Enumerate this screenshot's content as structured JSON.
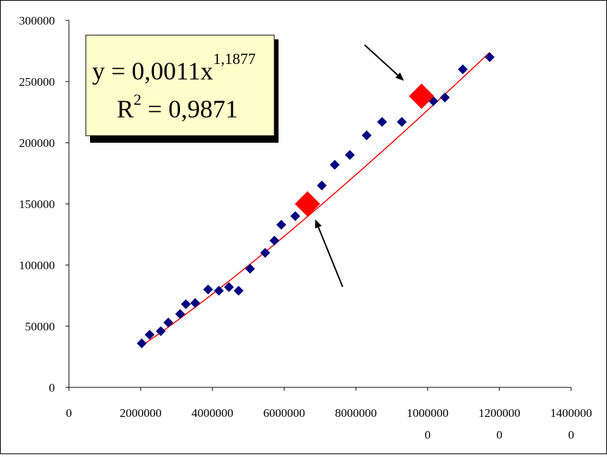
{
  "chart_data": {
    "type": "scatter",
    "xlim": [
      0,
      14000000
    ],
    "ylim": [
      0,
      300000
    ],
    "x_ticks": [
      {
        "value": 0,
        "lines": [
          "0"
        ]
      },
      {
        "value": 2000000,
        "lines": [
          "2000000"
        ]
      },
      {
        "value": 4000000,
        "lines": [
          "4000000"
        ]
      },
      {
        "value": 6000000,
        "lines": [
          "6000000"
        ]
      },
      {
        "value": 8000000,
        "lines": [
          "8000000"
        ]
      },
      {
        "value": 10000000,
        "lines": [
          "1000000",
          "0"
        ]
      },
      {
        "value": 12000000,
        "lines": [
          "1200000",
          "0"
        ]
      },
      {
        "value": 14000000,
        "lines": [
          "1400000",
          "0"
        ]
      }
    ],
    "y_ticks": [
      {
        "value": 0,
        "label": "0"
      },
      {
        "value": 50000,
        "label": "50000"
      },
      {
        "value": 100000,
        "label": "100000"
      },
      {
        "value": 150000,
        "label": "150000"
      },
      {
        "value": 200000,
        "label": "200000"
      },
      {
        "value": 250000,
        "label": "250000"
      },
      {
        "value": 300000,
        "label": "300000"
      }
    ],
    "grid": false,
    "legend": "none",
    "series": [
      {
        "marker": "diamond",
        "color": "#000080",
        "points": [
          [
            2030000,
            36000
          ],
          [
            2250000,
            43000
          ],
          [
            2560000,
            46000
          ],
          [
            2770000,
            53000
          ],
          [
            3100000,
            60000
          ],
          [
            3260000,
            68000
          ],
          [
            3520000,
            69000
          ],
          [
            3880000,
            80000
          ],
          [
            4180000,
            79000
          ],
          [
            4460000,
            82000
          ],
          [
            4730000,
            79000
          ],
          [
            5050000,
            97000
          ],
          [
            5470000,
            110000
          ],
          [
            5730000,
            120000
          ],
          [
            5920000,
            133000
          ],
          [
            6310000,
            140000
          ],
          [
            7050000,
            165000
          ],
          [
            7410000,
            182000
          ],
          [
            7830000,
            190000
          ],
          [
            8300000,
            206000
          ],
          [
            8730000,
            217000
          ],
          [
            9280000,
            217000
          ],
          [
            10160000,
            234000
          ],
          [
            10480000,
            237000
          ],
          [
            10980000,
            260000
          ],
          [
            11730000,
            270000
          ]
        ]
      }
    ],
    "trendline": {
      "kind": "power",
      "a": 0.0011,
      "b": 1.1877,
      "x_from": 2000000,
      "x_to": 11730000,
      "color": "#ff0000"
    },
    "highlights": [
      {
        "x": 6650000,
        "y": 150000,
        "color": "#ff0000",
        "marker": "diamond"
      },
      {
        "x": 9830000,
        "y": 238000,
        "color": "#ff0000",
        "marker": "diamond"
      }
    ],
    "arrows": [
      {
        "target_x": 6650000,
        "target_y": 150000,
        "from": "below-right"
      },
      {
        "target_x": 9830000,
        "target_y": 238000,
        "from": "above-left"
      }
    ],
    "equation_box": {
      "eq_main": "y = 0,0011x",
      "eq_exp": "1,1877",
      "r_main": "R",
      "r_sup": "2",
      "r_value": " = 0,9871",
      "background": "#ffffcc"
    }
  }
}
